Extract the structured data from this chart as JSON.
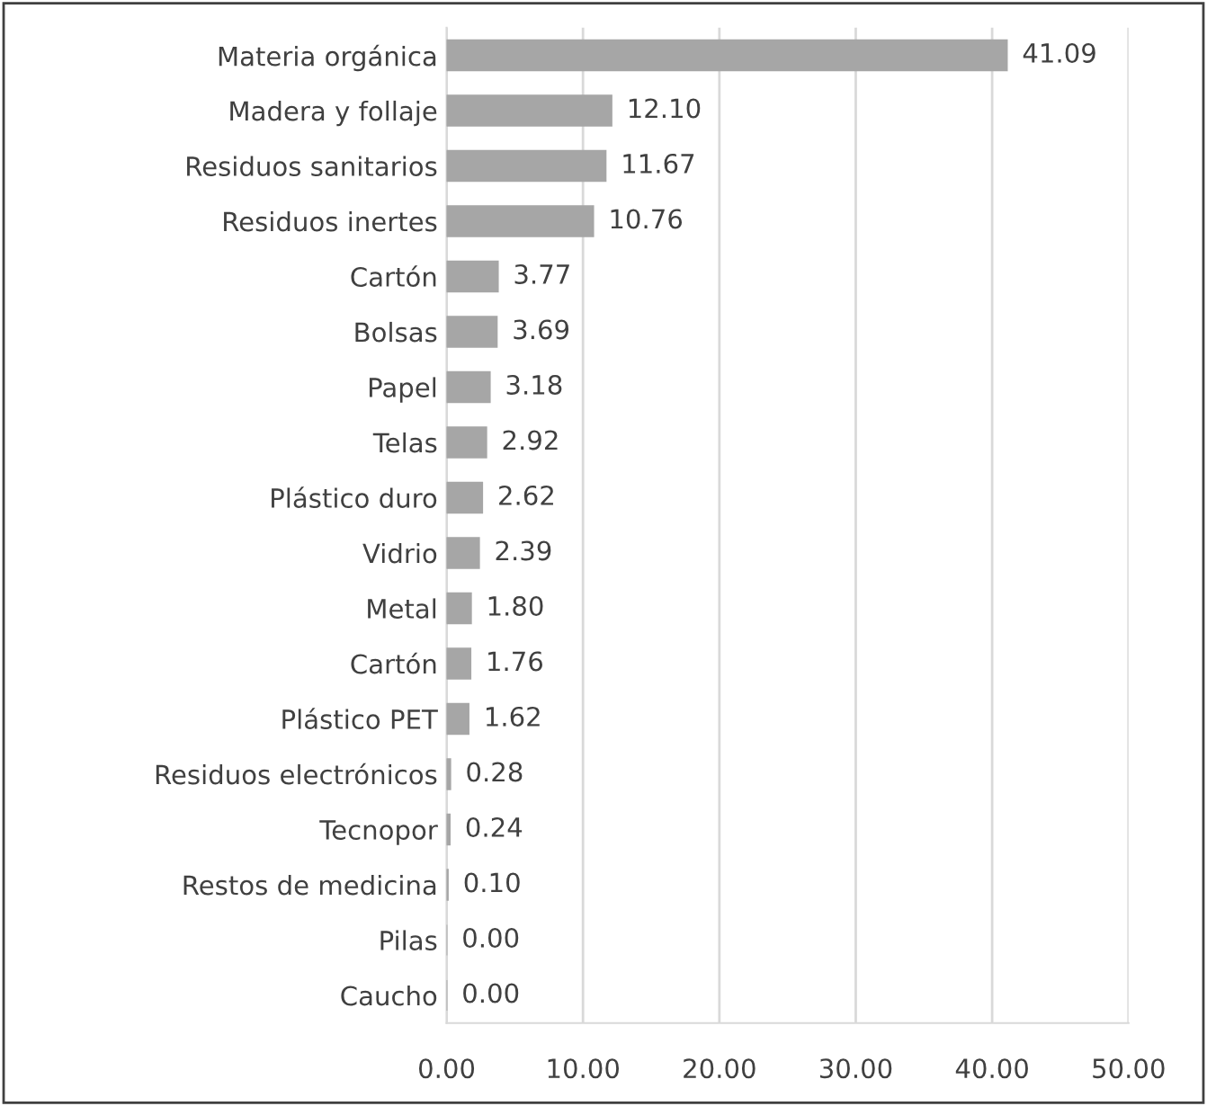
{
  "chart_data": {
    "type": "bar",
    "orientation": "horizontal",
    "categories": [
      "Materia orgánica",
      "Madera y follaje",
      "Residuos sanitarios",
      "Residuos inertes",
      "Cartón",
      "Bolsas",
      "Papel",
      "Telas",
      "Plástico duro",
      "Vidrio",
      "Metal",
      "Cartón",
      "Plástico PET",
      "Residuos electrónicos",
      "Tecnopor",
      "Restos de medicina",
      "Pilas",
      "Caucho"
    ],
    "values": [
      41.09,
      12.1,
      11.67,
      10.76,
      3.77,
      3.69,
      3.18,
      2.92,
      2.62,
      2.39,
      1.8,
      1.76,
      1.62,
      0.28,
      0.24,
      0.1,
      0.0,
      0.0
    ],
    "value_labels": [
      "41.09",
      "12.10",
      "11.67",
      "10.76",
      "3.77",
      "3.69",
      "3.18",
      "2.92",
      "2.62",
      "2.39",
      "1.80",
      "1.76",
      "1.62",
      "0.28",
      "0.24",
      "0.10",
      "0.00",
      "0.00"
    ],
    "color": "#a6a6a6",
    "xlim": [
      0,
      50
    ],
    "xticks": [
      {
        "value": 0,
        "label": "0.00"
      },
      {
        "value": 10,
        "label": "10.00"
      },
      {
        "value": 20,
        "label": "20.00"
      },
      {
        "value": 30,
        "label": "30.00"
      },
      {
        "value": 40,
        "label": "40.00"
      },
      {
        "value": 50,
        "label": "50.00"
      }
    ],
    "grid": "x"
  }
}
